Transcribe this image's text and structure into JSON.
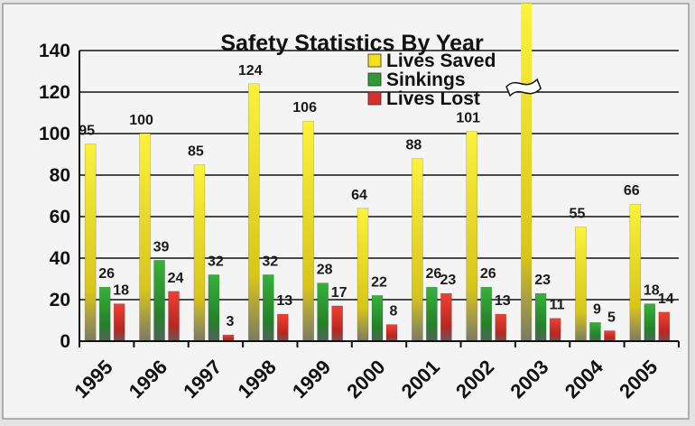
{
  "chart_data": {
    "type": "bar",
    "title": "Safety Statistics By Year",
    "categories": [
      "1995",
      "1996",
      "1997",
      "1998",
      "1999",
      "2000",
      "2001",
      "2002",
      "2003",
      "2004",
      "2005"
    ],
    "series": [
      {
        "name": "Lives Saved",
        "values": [
          95,
          100,
          85,
          124,
          106,
          64,
          88,
          101,
          null,
          55,
          66
        ]
      },
      {
        "name": "Sinkings",
        "values": [
          26,
          39,
          32,
          32,
          28,
          22,
          26,
          26,
          23,
          9,
          18
        ]
      },
      {
        "name": "Lives Lost",
        "values": [
          18,
          24,
          3,
          13,
          17,
          8,
          23,
          13,
          11,
          5,
          14
        ]
      }
    ],
    "ylim": [
      0,
      140
    ],
    "yticks": [
      0,
      20,
      40,
      60,
      80,
      100,
      120,
      140
    ],
    "grid": true,
    "legend": "top-right",
    "broken_bar": {
      "category": "2003",
      "series": "Lives Saved",
      "note": "bar exceeds axis (shown with break symbol)"
    },
    "colors": {
      "Lives Saved": "#f2e21c",
      "Sinkings": "#2f9a33",
      "Lives Lost": "#d8312b"
    }
  }
}
